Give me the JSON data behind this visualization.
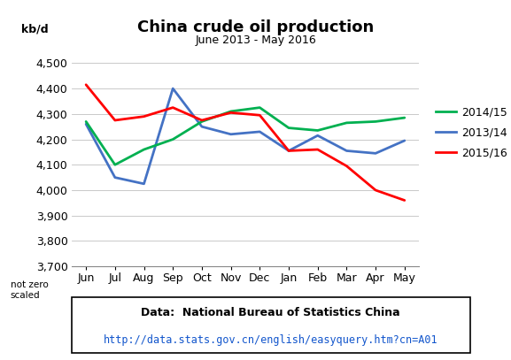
{
  "title": "China crude oil production",
  "subtitle": "June 2013 - May 2016",
  "ylabel": "kb/d",
  "not_zero_label": "not zero\nscaled",
  "months": [
    "Jun",
    "Jul",
    "Aug",
    "Sep",
    "Oct",
    "Nov",
    "Dec",
    "Jan",
    "Feb",
    "Mar",
    "Apr",
    "May"
  ],
  "series": {
    "2013/14": {
      "color": "#4472C4",
      "values": [
        4260,
        4050,
        4025,
        4400,
        4250,
        4220,
        4230,
        4155,
        4215,
        4155,
        4145,
        4195
      ]
    },
    "2014/15": {
      "color": "#00B050",
      "values": [
        4270,
        4100,
        4160,
        4200,
        4270,
        4310,
        4325,
        4245,
        4235,
        4265,
        4270,
        4285
      ]
    },
    "2015/16": {
      "color": "#FF0000",
      "values": [
        4415,
        4275,
        4290,
        4325,
        4275,
        4305,
        4295,
        4155,
        4160,
        4095,
        4000,
        3960
      ]
    }
  },
  "ylim": [
    3700,
    4550
  ],
  "yticks": [
    3700,
    3800,
    3900,
    4000,
    4100,
    4200,
    4300,
    4400,
    4500
  ],
  "source_text": "Data:  National Bureau of Statistics China",
  "source_url": "http://data.stats.gov.cn/english/easyquery.htm?cn=A01",
  "legend_order": [
    "2014/15",
    "2013/14",
    "2015/16"
  ],
  "legend_colors": [
    "#00B050",
    "#4472C4",
    "#FF0000"
  ],
  "background_color": "#FFFFFF",
  "line_width": 2.0
}
